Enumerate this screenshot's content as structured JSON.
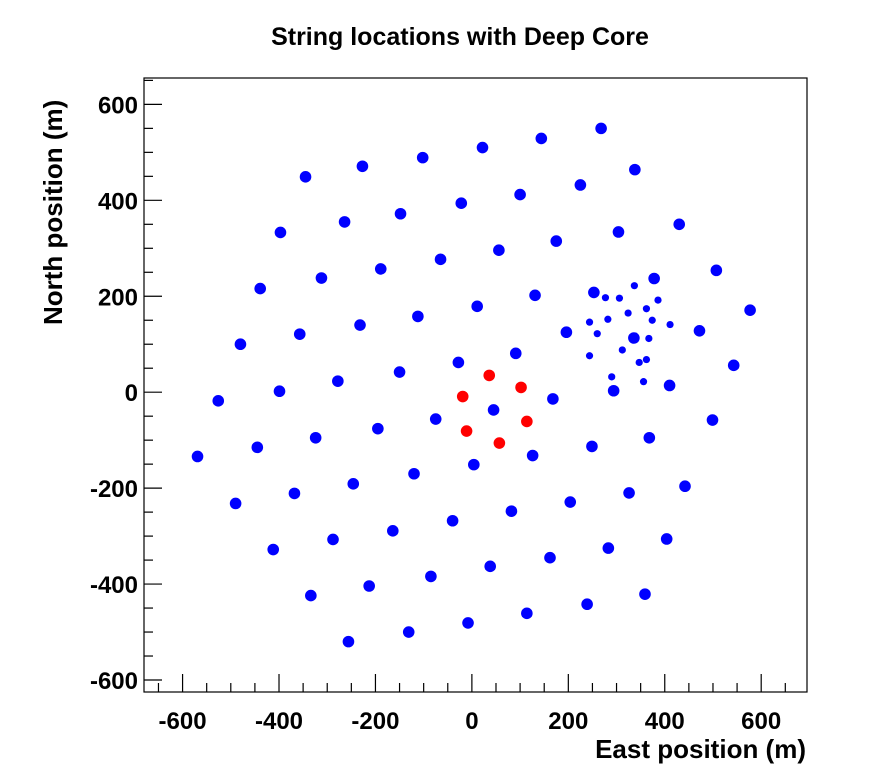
{
  "chart_data": {
    "type": "scatter",
    "title": "String locations with Deep Core",
    "xlabel": "East position (m)",
    "ylabel": "North position (m)",
    "xlim": [
      -680,
      695
    ],
    "ylim": [
      -625,
      655
    ],
    "xticks": [
      -600,
      -400,
      -200,
      0,
      200,
      400,
      600
    ],
    "yticks": [
      -600,
      -400,
      -200,
      0,
      200,
      400,
      600
    ],
    "grid": false,
    "legend": "none",
    "series": [
      {
        "color": "#0000ff",
        "marker": "large",
        "points": [
          [
            268,
            550
          ],
          [
            144,
            529
          ],
          [
            22,
            510
          ],
          [
            -102,
            489
          ],
          [
            -227,
            471
          ],
          [
            -345,
            449
          ],
          [
            338,
            464
          ],
          [
            225,
            432
          ],
          [
            100,
            412
          ],
          [
            -22,
            394
          ],
          [
            -148,
            372
          ],
          [
            -264,
            355
          ],
          [
            -397,
            333
          ],
          [
            430,
            350
          ],
          [
            304,
            334
          ],
          [
            175,
            315
          ],
          [
            56,
            296
          ],
          [
            -65,
            277
          ],
          [
            -189,
            257
          ],
          [
            -312,
            238
          ],
          [
            -439,
            216
          ],
          [
            507,
            254
          ],
          [
            378,
            237
          ],
          [
            253,
            208
          ],
          [
            131,
            202
          ],
          [
            11,
            179
          ],
          [
            -112,
            158
          ],
          [
            -232,
            140
          ],
          [
            -357,
            121
          ],
          [
            -480,
            100
          ],
          [
            577,
            171
          ],
          [
            472,
            128
          ],
          [
            336,
            113
          ],
          [
            196,
            125
          ],
          [
            91,
            81
          ],
          [
            -28,
            62
          ],
          [
            -150,
            42
          ],
          [
            -278,
            23
          ],
          [
            -399,
            2
          ],
          [
            -526,
            -18
          ],
          [
            543,
            56
          ],
          [
            410,
            14
          ],
          [
            294,
            3
          ],
          [
            168,
            -14
          ],
          [
            45,
            -37
          ],
          [
            -75,
            -56
          ],
          [
            -195,
            -76
          ],
          [
            -324,
            -95
          ],
          [
            -445,
            -115
          ],
          [
            -569,
            -134
          ],
          [
            499,
            -58
          ],
          [
            368,
            -95
          ],
          [
            249,
            -113
          ],
          [
            126,
            -132
          ],
          [
            4,
            -151
          ],
          [
            -120,
            -170
          ],
          [
            -246,
            -191
          ],
          [
            -368,
            -211
          ],
          [
            -490,
            -232
          ],
          [
            442,
            -196
          ],
          [
            326,
            -210
          ],
          [
            204,
            -229
          ],
          [
            82,
            -248
          ],
          [
            -40,
            -268
          ],
          [
            -164,
            -289
          ],
          [
            -288,
            -307
          ],
          [
            -412,
            -328
          ],
          [
            404,
            -306
          ],
          [
            283,
            -325
          ],
          [
            162,
            -345
          ],
          [
            38,
            -363
          ],
          [
            -85,
            -384
          ],
          [
            -213,
            -404
          ],
          [
            -334,
            -424
          ],
          [
            359,
            -421
          ],
          [
            239,
            -442
          ],
          [
            114,
            -461
          ],
          [
            -8,
            -481
          ],
          [
            -131,
            -500
          ],
          [
            -256,
            -520
          ]
        ]
      },
      {
        "color": "#0000ff",
        "marker": "small",
        "points": [
          [
            337,
            222
          ],
          [
            386,
            192
          ],
          [
            277,
            197
          ],
          [
            306,
            196
          ],
          [
            244,
            146
          ],
          [
            282,
            152
          ],
          [
            324,
            165
          ],
          [
            362,
            174
          ],
          [
            411,
            141
          ],
          [
            260,
            122
          ],
          [
            312,
            88
          ],
          [
            332,
            115
          ],
          [
            374,
            150
          ],
          [
            347,
            62
          ],
          [
            367,
            112
          ],
          [
            244,
            76
          ],
          [
            362,
            68
          ],
          [
            290,
            32
          ],
          [
            356,
            22
          ]
        ]
      },
      {
        "color": "#ff0000",
        "marker": "large",
        "points": [
          [
            36,
            35
          ],
          [
            102,
            10
          ],
          [
            -19,
            -9
          ],
          [
            114,
            -61
          ],
          [
            -11,
            -81
          ],
          [
            57,
            -106
          ]
        ]
      }
    ]
  }
}
